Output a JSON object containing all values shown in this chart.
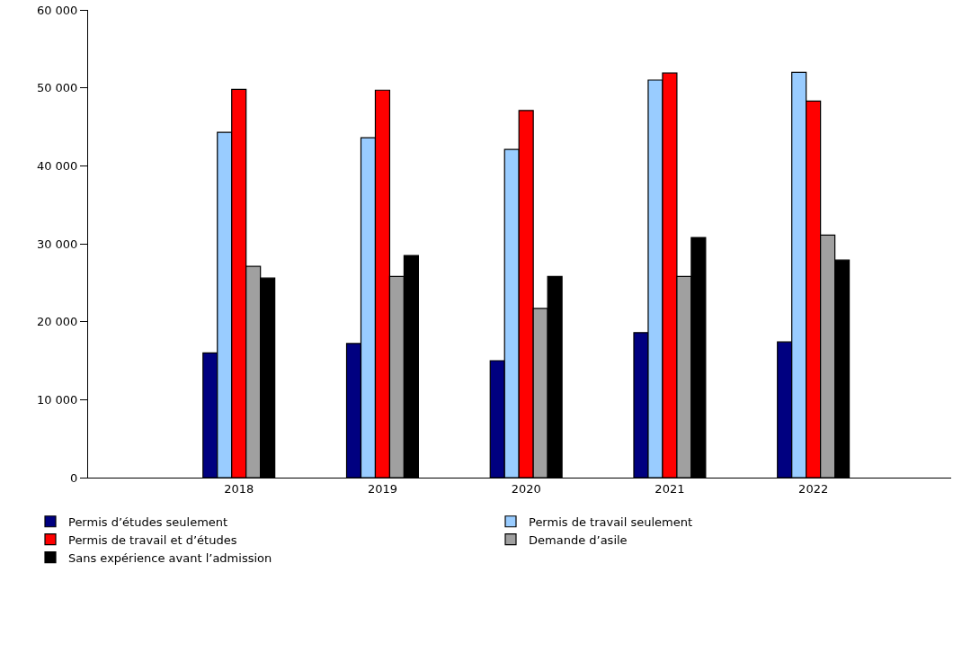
{
  "chart_data": {
    "type": "bar",
    "categories": [
      "2018",
      "2019",
      "2020",
      "2021",
      "2022"
    ],
    "series": [
      {
        "name": "Permis d’études seulement",
        "color": "#000080",
        "values": [
          16000,
          17200,
          15000,
          18600,
          17400
        ]
      },
      {
        "name": "Permis de travail seulement",
        "color": "#99ccff",
        "values": [
          44300,
          43600,
          42100,
          51000,
          52000
        ]
      },
      {
        "name": "Permis de travail et d’études",
        "color": "#ff0000",
        "values": [
          49800,
          49700,
          47100,
          51900,
          48300
        ]
      },
      {
        "name": "Demande d’asile",
        "color": "#a0a0a0",
        "values": [
          27100,
          25800,
          21700,
          25800,
          31100
        ]
      },
      {
        "name": "Sans expérience avant l’admission",
        "color": "#000000",
        "values": [
          25600,
          28500,
          25800,
          30800,
          27900
        ]
      }
    ],
    "ylim": [
      0,
      60000
    ],
    "yticks": [
      {
        "value": 0,
        "label": "0"
      },
      {
        "value": 10000,
        "label": "10 000"
      },
      {
        "value": 20000,
        "label": "20 000"
      },
      {
        "value": 30000,
        "label": "30 000"
      },
      {
        "value": 40000,
        "label": "40 000"
      },
      {
        "value": 50000,
        "label": "50 000"
      },
      {
        "value": 60000,
        "label": "60 000"
      }
    ],
    "grid": false,
    "legend": "bottom"
  }
}
